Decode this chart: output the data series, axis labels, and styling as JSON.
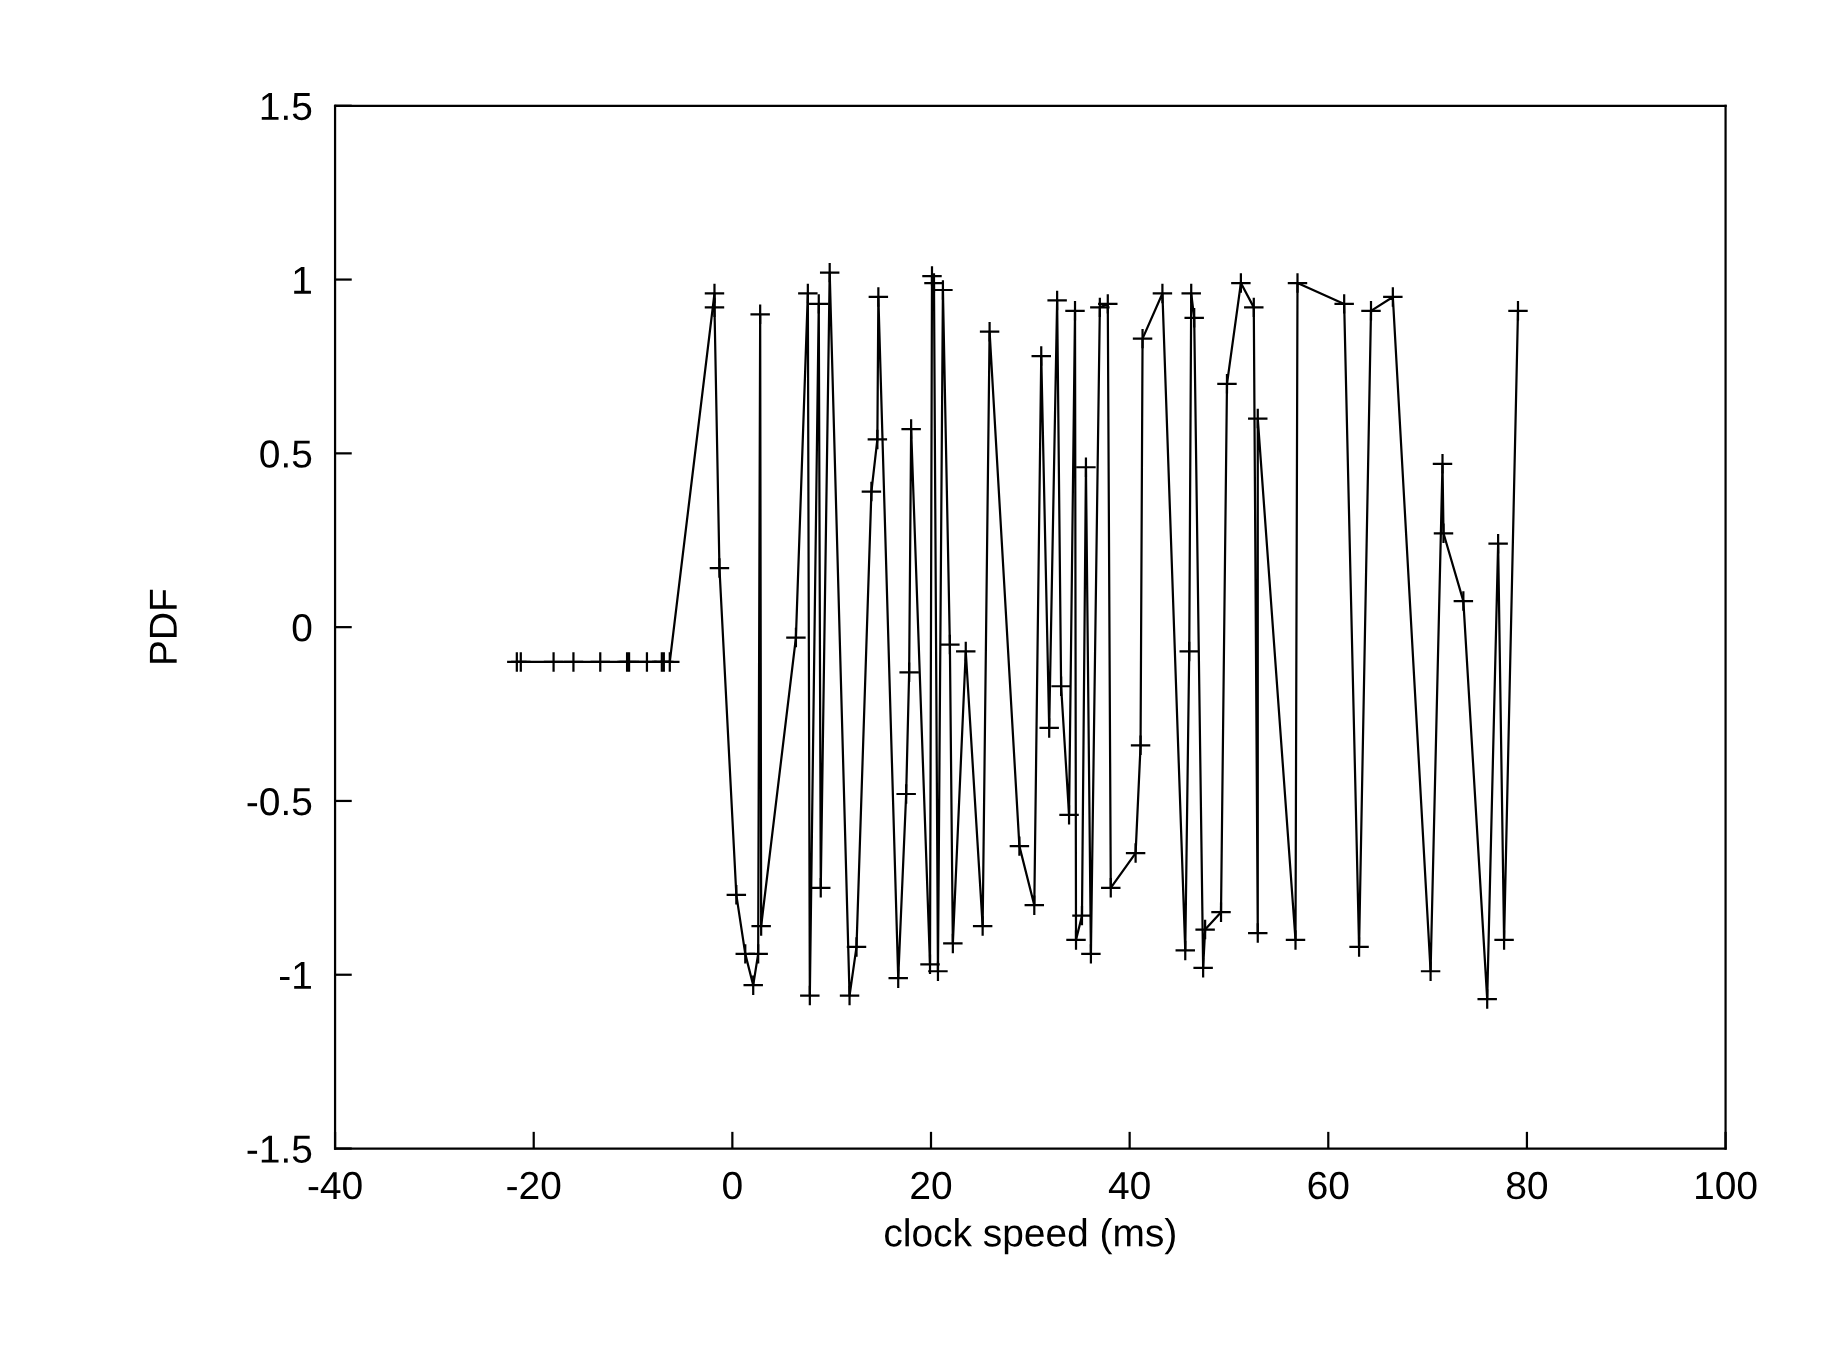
{
  "chart_data": {
    "type": "line",
    "xlabel": "clock speed (ms)",
    "ylabel": "PDF",
    "x": [
      -21.7,
      -21.3,
      -18.0,
      -16.0,
      -13.3,
      -10.6,
      -10.4,
      -8.6,
      -7.1,
      -6.9,
      -6.3,
      -1.8,
      -1.8,
      -1.3,
      0.4,
      1.3,
      2.1,
      2.6,
      2.8,
      2.9,
      6.4,
      7.6,
      7.8,
      8.7,
      8.9,
      9.8,
      11.8,
      12.5,
      14.0,
      14.6,
      14.7,
      16.7,
      17.5,
      17.8,
      18.0,
      19.9,
      20.1,
      20.3,
      20.7,
      21.2,
      21.9,
      22.2,
      23.5,
      25.2,
      25.9,
      28.9,
      30.4,
      31.1,
      31.9,
      32.7,
      33.1,
      33.9,
      34.5,
      34.6,
      35.2,
      35.6,
      36.1,
      37.0,
      37.8,
      38.1,
      40.6,
      41.1,
      41.3,
      43.3,
      45.6,
      46.0,
      46.2,
      46.5,
      47.4,
      47.6,
      49.2,
      49.8,
      51.2,
      52.5,
      52.9,
      52.9,
      56.7,
      56.9,
      61.6,
      63.1,
      64.3,
      66.5,
      70.3,
      71.5,
      71.6,
      73.6,
      76.0,
      77.1,
      77.7,
      79.1
    ],
    "series": [
      {
        "color": "#000000",
        "values": [
          -0.1,
          -0.1,
          -0.1,
          -0.1,
          -0.1,
          -0.1,
          -0.1,
          -0.1,
          -0.1,
          -0.1,
          -0.1,
          0.96,
          0.92,
          0.17,
          -0.77,
          -0.94,
          -1.03,
          -0.94,
          0.9,
          -0.86,
          -0.03,
          0.96,
          -1.06,
          0.93,
          -0.75,
          1.02,
          -1.06,
          -0.92,
          0.39,
          0.54,
          0.95,
          -1.01,
          -0.48,
          -0.13,
          0.57,
          -0.97,
          1.01,
          0.99,
          -0.99,
          0.97,
          -0.05,
          -0.91,
          -0.07,
          -0.86,
          0.85,
          -0.63,
          -0.8,
          0.78,
          -0.29,
          0.94,
          -0.17,
          -0.54,
          0.91,
          -0.9,
          -0.83,
          0.46,
          -0.94,
          0.92,
          0.93,
          -0.75,
          -0.65,
          -0.34,
          0.83,
          0.96,
          -0.93,
          -0.07,
          0.96,
          0.89,
          -0.98,
          -0.87,
          -0.82,
          0.7,
          0.99,
          0.92,
          -0.88,
          0.6,
          -0.9,
          0.99,
          0.93,
          -0.92,
          0.91,
          0.95,
          -0.99,
          0.47,
          0.27,
          0.075,
          -1.07,
          0.24,
          -0.9,
          0.91
        ]
      }
    ],
    "xlim": [
      -40,
      100
    ],
    "xticks": [
      -40,
      -20,
      0,
      20,
      40,
      60,
      80,
      100
    ],
    "ylim": [
      -1.5,
      1.5
    ],
    "yticks": [
      -1.5,
      -1,
      -0.5,
      0,
      0.5,
      1,
      1.5
    ],
    "marker": "cross",
    "line_style": "solid",
    "grid": false,
    "legend": false
  }
}
